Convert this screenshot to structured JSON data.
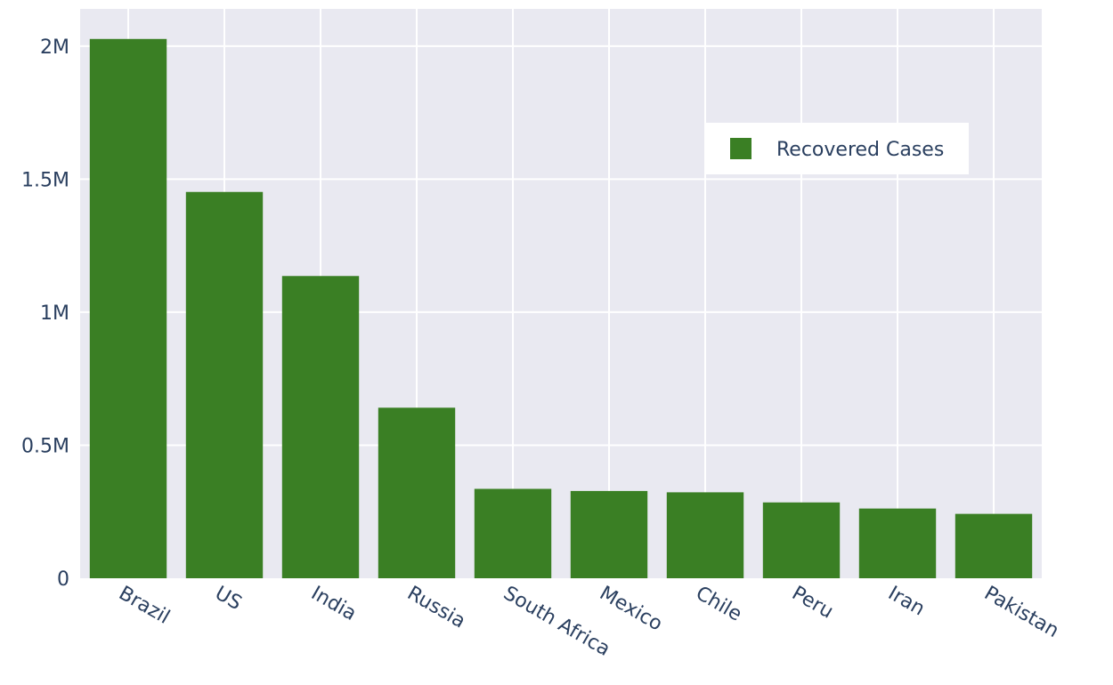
{
  "chart_data": {
    "type": "bar",
    "categories": [
      "Brazil",
      "US",
      "India",
      "Russia",
      "South Africa",
      "Mexico",
      "Chile",
      "Peru",
      "Iran",
      "Pakistan"
    ],
    "series": [
      {
        "name": "Recovered Cases",
        "values": [
          2027000,
          1452000,
          1136000,
          641000,
          336000,
          328000,
          323000,
          285000,
          262000,
          242000
        ]
      }
    ],
    "ylim": [
      0,
      2140000
    ],
    "yticks": [
      0,
      500000,
      1000000,
      1500000,
      2000000
    ],
    "ytick_labels": [
      "0",
      "0.5M",
      "1M",
      "1.5M",
      "2M"
    ],
    "grid": true,
    "legend_position": "top-right",
    "colors": {
      "bar": "#3a7f24",
      "plot_background": "#e9e9f1",
      "grid": "#ffffff",
      "text": "#2a3f5f"
    }
  }
}
